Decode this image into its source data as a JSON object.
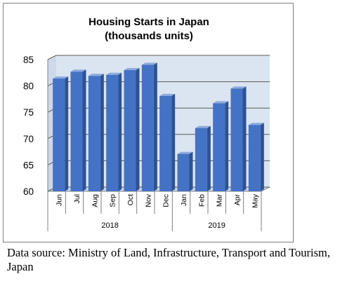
{
  "chart_data": {
    "type": "bar",
    "title": [
      "Housing Starts in Japan",
      "(thousands units)"
    ],
    "categories": [
      "Jun",
      "Jul",
      "Aug",
      "Sep",
      "Oct",
      "Nov",
      "Dec",
      "Jan",
      "Feb",
      "Mar",
      "Apr",
      "May"
    ],
    "groups": [
      {
        "label": "2018",
        "categories": [
          "Jun",
          "Jul",
          "Aug",
          "Sep",
          "Oct",
          "Nov",
          "Dec"
        ]
      },
      {
        "label": "2019",
        "categories": [
          "Jan",
          "Feb",
          "Mar",
          "Apr",
          "May"
        ]
      }
    ],
    "values": [
      81.4,
      82.7,
      81.9,
      82.1,
      83.0,
      84.0,
      78.1,
      67.1,
      72.0,
      76.7,
      79.5,
      72.6
    ],
    "ylim": [
      60,
      85
    ],
    "yticks": [
      60,
      65,
      70,
      75,
      80,
      85
    ],
    "grid": true,
    "style": "3d",
    "colors": {
      "bar": "#4472c4",
      "bar_side": "#2f528f",
      "bar_top": "#8faadc",
      "plot_bg": "#dbe5f1",
      "grid": "#595959",
      "frame": "#7f7f7f"
    }
  },
  "source_note": "Data source: Ministry of Land, Infrastructure, Transport and Tourism, Japan"
}
